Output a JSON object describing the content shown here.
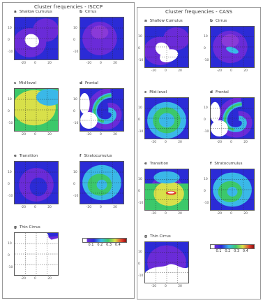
{
  "left_figure": {
    "title": "Cluster frequencies - ISCCP",
    "panels": [
      {
        "letter": "a",
        "name": "Shallow Cumulus"
      },
      {
        "letter": "b",
        "name": "Cirrus"
      },
      {
        "letter": "c",
        "name": "Mid-level"
      },
      {
        "letter": "d",
        "name": "Frontal"
      },
      {
        "letter": "e",
        "name": "Transition"
      },
      {
        "letter": "f",
        "name": "Stratocumulus"
      },
      {
        "letter": "g",
        "name": "Thin Cirrus"
      }
    ],
    "colorbar_ticks": [
      "0.1",
      "0.2",
      "0.3",
      "0.4"
    ]
  },
  "right_figure": {
    "title": "Cluster frequencies - CASS",
    "panels": [
      {
        "letter": "a",
        "name": "Shallow Cumulus"
      },
      {
        "letter": "b",
        "name": "Cirrus"
      },
      {
        "letter": "c",
        "name": "Mid-level"
      },
      {
        "letter": "d",
        "name": "Frontal"
      },
      {
        "letter": "e",
        "name": "Transition"
      },
      {
        "letter": "f",
        "name": "Stratocumulus"
      },
      {
        "letter": "g",
        "name": "Thin Cirrus"
      }
    ],
    "colorbar_ticks": [
      "0.1",
      "0.2",
      "0.3",
      "0.4"
    ]
  },
  "axes": {
    "x_ticks": [
      "-20",
      "0",
      "20"
    ],
    "y_ticks": [
      "10",
      "0",
      "-10"
    ]
  },
  "colors": {
    "background_blue": "#2b2bd6",
    "violet": "#6a2bd8",
    "cyan": "#3ab8e8",
    "green": "#3cc86a",
    "yellow": "#d8e04a",
    "red": "#e03a2a"
  }
}
